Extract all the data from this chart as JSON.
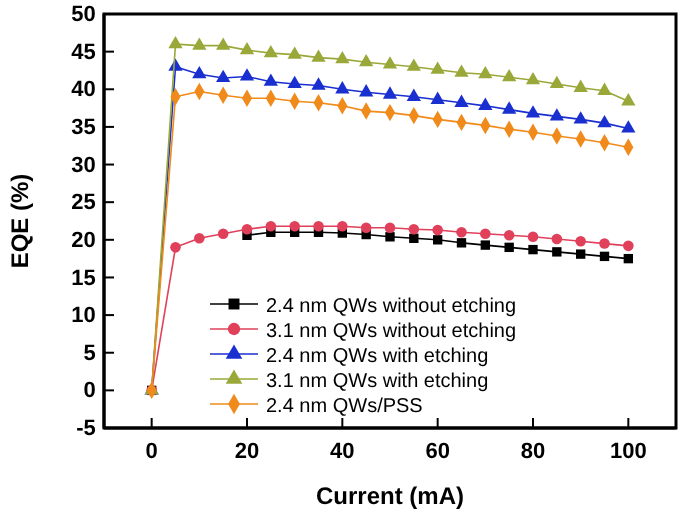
{
  "chart_data": {
    "type": "line",
    "xlabel": "Current (mA)",
    "ylabel": "EQE (%)",
    "x": [
      0,
      5,
      10,
      15,
      20,
      25,
      30,
      35,
      40,
      45,
      50,
      55,
      60,
      65,
      70,
      75,
      80,
      85,
      90,
      95,
      100
    ],
    "xlim": [
      -10,
      110
    ],
    "xticks": [
      0,
      20,
      40,
      60,
      80,
      100
    ],
    "ylim": [
      -5,
      50
    ],
    "yticks": [
      -5,
      0,
      5,
      10,
      15,
      20,
      25,
      30,
      35,
      40,
      45,
      50
    ],
    "legend": "bottom",
    "grid": false,
    "series": [
      {
        "name": "2.4 nm QWs without etching",
        "color": "#000000",
        "marker": "square",
        "values": [
          0,
          null,
          null,
          null,
          20.6,
          21,
          21,
          21,
          20.9,
          20.7,
          20.4,
          20.2,
          20,
          19.6,
          19.3,
          19,
          18.7,
          18.4,
          18.1,
          17.8,
          17.5
        ]
      },
      {
        "name": "3.1 nm QWs without etching",
        "color": "#e0405a",
        "marker": "circle",
        "values": [
          0,
          19,
          20.2,
          20.8,
          21.4,
          21.8,
          21.8,
          21.8,
          21.8,
          21.6,
          21.6,
          21.4,
          21.3,
          21,
          20.8,
          20.6,
          20.4,
          20.1,
          19.8,
          19.5,
          19.2
        ]
      },
      {
        "name": "2.4 nm QWs with etching",
        "color": "#1a2fd0",
        "marker": "triangle",
        "values": [
          0,
          43,
          42,
          41.5,
          41.7,
          41,
          40.7,
          40.5,
          40,
          39.6,
          39.3,
          39,
          38.6,
          38.2,
          37.8,
          37.3,
          36.8,
          36.4,
          36,
          35.5,
          34.8
        ]
      },
      {
        "name": "3.1 nm QWs with etching",
        "color": "#9aa83a",
        "marker": "triangle",
        "values": [
          0,
          46,
          45.8,
          45.8,
          45.2,
          44.8,
          44.6,
          44.2,
          44,
          43.6,
          43.3,
          43,
          42.6,
          42.2,
          42,
          41.6,
          41.2,
          40.7,
          40.2,
          39.8,
          38.4
        ]
      },
      {
        "name": "2.4 nm QWs/PSS",
        "color": "#f08a1a",
        "marker": "diamond",
        "values": [
          0,
          39,
          39.7,
          39.2,
          38.8,
          38.8,
          38.4,
          38.2,
          37.8,
          37.1,
          36.9,
          36.5,
          36,
          35.6,
          35.2,
          34.7,
          34.3,
          33.8,
          33.4,
          32.9,
          32.3
        ]
      }
    ]
  }
}
